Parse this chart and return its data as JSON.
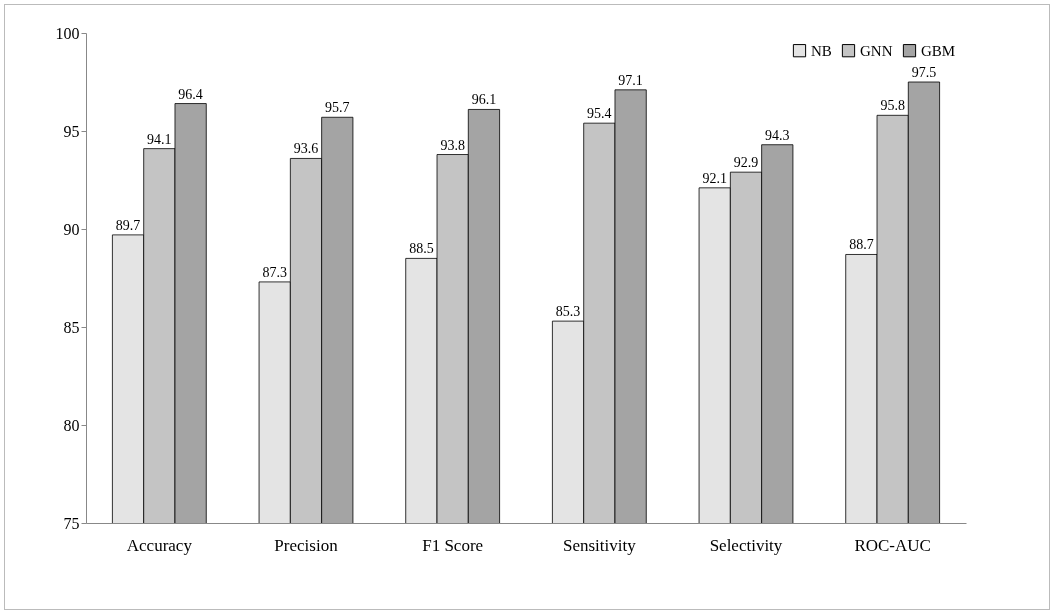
{
  "chart_data": {
    "type": "bar",
    "categories": [
      "Accuracy",
      "Precision",
      "F1 Score",
      "Sensitivity",
      "Selectivity",
      "ROC-AUC"
    ],
    "series": [
      {
        "name": "NB",
        "color": "#e4e4e4",
        "values": [
          89.7,
          87.3,
          88.5,
          85.3,
          92.1,
          88.7
        ]
      },
      {
        "name": "GNN",
        "color": "#c4c4c4",
        "values": [
          94.1,
          93.6,
          93.8,
          95.4,
          92.9,
          95.8
        ]
      },
      {
        "name": "GBM",
        "color": "#a4a4a4",
        "values": [
          96.4,
          95.7,
          96.1,
          97.1,
          94.3,
          97.5
        ]
      }
    ],
    "ylim": [
      75,
      100
    ],
    "yticks": [
      75,
      80,
      85,
      90,
      95,
      100
    ],
    "grid": false,
    "legend": "top right",
    "data_labels": true
  }
}
